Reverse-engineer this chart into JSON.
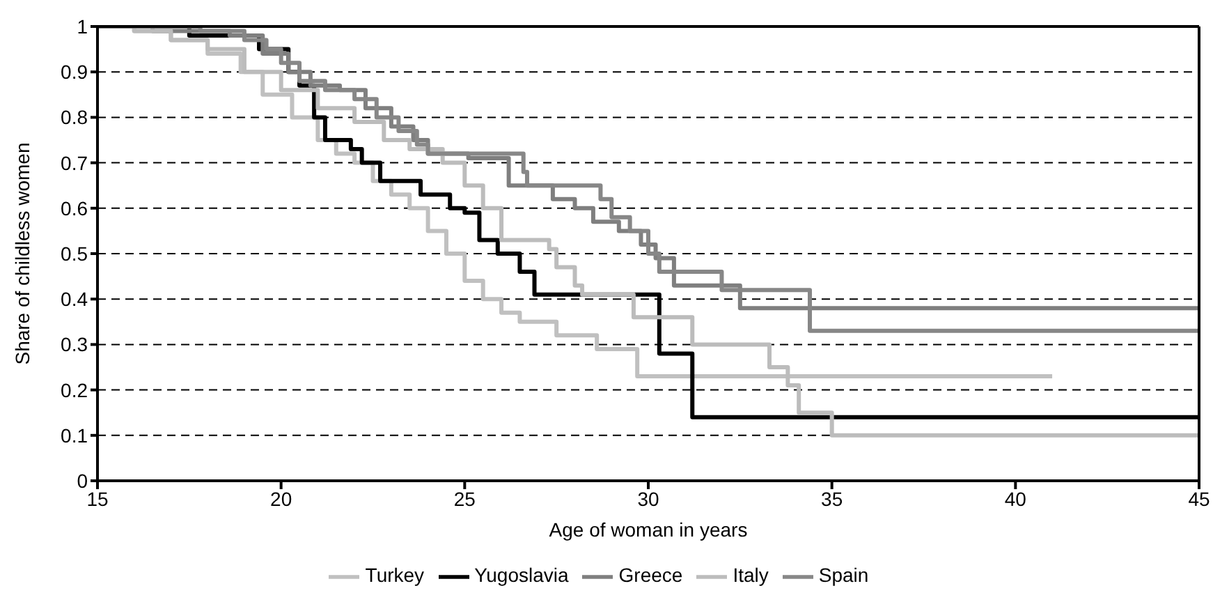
{
  "chart_data": {
    "type": "step",
    "xlabel": "Age of woman in years",
    "ylabel": "Share of childless women",
    "xlim": [
      15,
      45
    ],
    "xticks": [
      15,
      20,
      25,
      30,
      35,
      40,
      45
    ],
    "ylim": [
      0,
      1
    ],
    "yticks": [
      0,
      0.1,
      0.2,
      0.3,
      0.4,
      0.5,
      0.6,
      0.7,
      0.8,
      0.9,
      1
    ],
    "grid": "y",
    "legend": "bottom",
    "marker": "none",
    "line_style": "solid",
    "series": [
      {
        "name": "Turkey",
        "color": "#c0c0c0",
        "x": [
          15,
          16,
          17,
          18,
          18.9,
          19.5,
          20.3,
          21,
          21.5,
          22,
          22.5,
          23,
          23.5,
          24,
          24.5,
          25,
          25.5,
          26,
          26.5,
          27.5,
          28.6,
          29.7,
          41
        ],
        "values": [
          1,
          0.99,
          0.97,
          0.94,
          0.9,
          0.85,
          0.8,
          0.75,
          0.72,
          0.7,
          0.66,
          0.63,
          0.6,
          0.55,
          0.5,
          0.44,
          0.4,
          0.37,
          0.35,
          0.32,
          0.29,
          0.23,
          0.23
        ]
      },
      {
        "name": "Yugoslavia",
        "color": "#000000",
        "x": [
          15,
          17.5,
          19.4,
          20.2,
          20.5,
          20.9,
          21.2,
          21.9,
          22.2,
          22.7,
          23.8,
          24.6,
          25,
          25.4,
          25.9,
          26.5,
          26.9,
          30.3,
          31.2,
          45
        ],
        "values": [
          1,
          0.98,
          0.95,
          0.9,
          0.87,
          0.8,
          0.75,
          0.73,
          0.7,
          0.66,
          0.63,
          0.6,
          0.59,
          0.53,
          0.5,
          0.46,
          0.41,
          0.28,
          0.14,
          0.14
        ]
      },
      {
        "name": "Greece",
        "color": "#7f7f7f",
        "x": [
          15,
          16.5,
          18.6,
          19.5,
          20.2,
          20.8,
          21.6,
          22.3,
          23,
          23.6,
          24,
          25.1,
          26.2,
          27.4,
          28,
          28.5,
          29.2,
          29.8,
          30.2,
          30.7,
          32.5,
          45
        ],
        "values": [
          1,
          0.99,
          0.98,
          0.94,
          0.9,
          0.87,
          0.86,
          0.82,
          0.78,
          0.75,
          0.72,
          0.71,
          0.65,
          0.62,
          0.6,
          0.57,
          0.55,
          0.52,
          0.49,
          0.43,
          0.38,
          0.38
        ]
      },
      {
        "name": "Italy",
        "color": "#bcbcbc",
        "x": [
          15,
          16,
          17,
          18,
          19,
          20,
          21,
          22,
          22.8,
          23.5,
          24.4,
          25,
          25.5,
          26,
          27.3,
          27.5,
          28,
          28.2,
          29.6,
          31.2,
          33.3,
          33.8,
          34.1,
          35,
          45
        ],
        "values": [
          1,
          0.99,
          0.97,
          0.95,
          0.9,
          0.86,
          0.82,
          0.79,
          0.75,
          0.73,
          0.7,
          0.65,
          0.6,
          0.53,
          0.51,
          0.47,
          0.43,
          0.41,
          0.36,
          0.3,
          0.25,
          0.21,
          0.15,
          0.1,
          0.1
        ]
      },
      {
        "name": "Spain",
        "color": "#878787",
        "x": [
          15,
          17.8,
          19,
          19.6,
          20,
          20.5,
          21.2,
          22,
          22.6,
          23.2,
          23.7,
          24,
          26.6,
          26.7,
          28.7,
          29,
          29.5,
          30,
          30.3,
          32,
          34.4,
          45
        ],
        "values": [
          1,
          0.99,
          0.97,
          0.95,
          0.92,
          0.88,
          0.86,
          0.84,
          0.8,
          0.77,
          0.74,
          0.72,
          0.68,
          0.65,
          0.62,
          0.58,
          0.55,
          0.5,
          0.46,
          0.42,
          0.33,
          0.33
        ]
      }
    ]
  }
}
